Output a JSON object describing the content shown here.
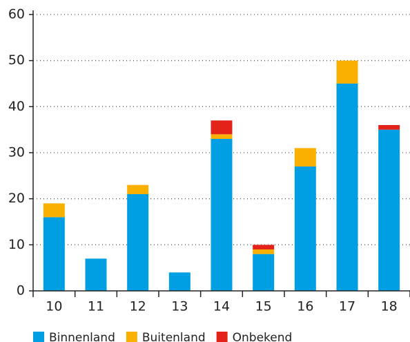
{
  "chart_data": {
    "type": "stacked_bar",
    "categories": [
      "10",
      "11",
      "12",
      "13",
      "14",
      "15",
      "16",
      "17",
      "18"
    ],
    "series": [
      {
        "name": "Binnenland",
        "color": "#009fe3",
        "values": [
          16,
          7,
          21,
          4,
          33,
          8,
          27,
          45,
          35
        ]
      },
      {
        "name": "Buitenland",
        "color": "#f9b000",
        "values": [
          3,
          0,
          2,
          0,
          1,
          1,
          4,
          5,
          0
        ]
      },
      {
        "name": "Onbekend",
        "color": "#e3221a",
        "values": [
          0,
          0,
          0,
          0,
          3,
          1,
          0,
          0,
          1
        ]
      }
    ],
    "ylim": [
      0,
      60
    ],
    "yticks": [
      0,
      10,
      20,
      30,
      40,
      50,
      60
    ],
    "grid": true,
    "legend": "bottom"
  }
}
